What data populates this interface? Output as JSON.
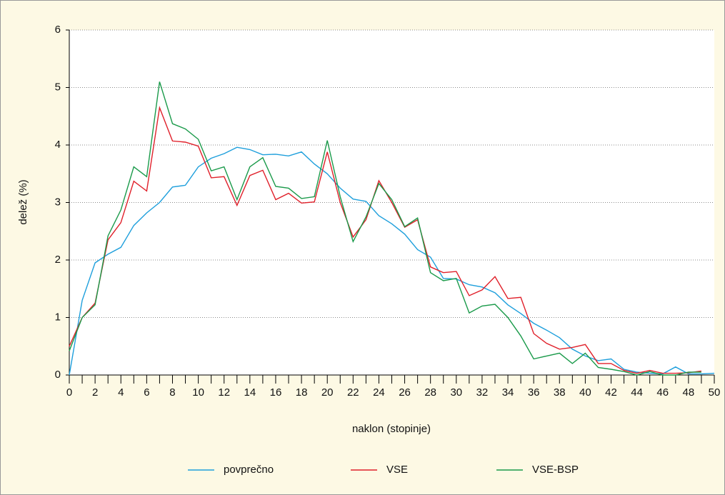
{
  "chart_data": {
    "type": "line",
    "x": [
      0,
      1,
      2,
      3,
      4,
      5,
      6,
      7,
      8,
      9,
      10,
      11,
      12,
      13,
      14,
      15,
      16,
      17,
      18,
      19,
      20,
      21,
      22,
      23,
      24,
      25,
      26,
      27,
      28,
      29,
      30,
      31,
      32,
      33,
      34,
      35,
      36,
      37,
      38,
      39,
      40,
      41,
      42,
      43,
      44,
      45,
      46,
      47,
      48,
      49,
      50
    ],
    "series": [
      {
        "name": "povprečno",
        "color": "#1e9fdc",
        "values": [
          0,
          1.3,
          1.95,
          2.1,
          2.22,
          2.6,
          2.82,
          3.0,
          3.27,
          3.3,
          3.62,
          3.77,
          3.85,
          3.96,
          3.92,
          3.83,
          3.84,
          3.81,
          3.88,
          3.67,
          3.5,
          3.25,
          3.06,
          3.02,
          2.77,
          2.63,
          2.45,
          2.18,
          2.05,
          1.68,
          1.67,
          1.57,
          1.53,
          1.43,
          1.22,
          1.07,
          0.9,
          0.78,
          0.65,
          0.45,
          0.33,
          0.25,
          0.28,
          0.1,
          0.05,
          0.03,
          0.02,
          0.14,
          0.02,
          0.02,
          0.03
        ]
      },
      {
        "name": "VSE",
        "color": "#e0202a",
        "values": [
          0.5,
          1.0,
          1.25,
          2.35,
          2.65,
          3.37,
          3.2,
          4.65,
          4.07,
          4.05,
          3.98,
          3.43,
          3.45,
          2.95,
          3.47,
          3.56,
          3.05,
          3.16,
          2.99,
          3.01,
          3.88,
          3.0,
          2.4,
          2.7,
          3.38,
          3.0,
          2.57,
          2.7,
          1.88,
          1.78,
          1.8,
          1.38,
          1.48,
          1.71,
          1.33,
          1.35,
          0.72,
          0.55,
          0.45,
          0.48,
          0.53,
          0.2,
          0.2,
          0.08,
          0.03,
          0.08,
          0.03,
          0.03,
          0.04,
          0.07,
          null
        ]
      },
      {
        "name": "VSE-BSP",
        "color": "#1a9a4a",
        "values": [
          0.42,
          1.0,
          1.22,
          2.42,
          2.87,
          3.62,
          3.45,
          5.1,
          4.37,
          4.28,
          4.1,
          3.55,
          3.62,
          3.05,
          3.62,
          3.78,
          3.28,
          3.25,
          3.07,
          3.1,
          4.08,
          3.1,
          2.32,
          2.75,
          3.33,
          3.05,
          2.58,
          2.73,
          1.78,
          1.64,
          1.68,
          1.08,
          1.2,
          1.23,
          1.0,
          0.68,
          0.28,
          0.33,
          0.38,
          0.2,
          0.38,
          0.13,
          0.1,
          0.06,
          0.0,
          0.06,
          0.0,
          0.0,
          0.05,
          0.05,
          null
        ]
      }
    ],
    "xlabel": "naklon (stopinje)",
    "ylabel": "delež (%)",
    "xlim": [
      0,
      50
    ],
    "xticks": [
      0,
      2,
      4,
      6,
      8,
      10,
      12,
      14,
      16,
      18,
      20,
      22,
      24,
      26,
      28,
      30,
      32,
      34,
      36,
      38,
      40,
      42,
      44,
      46,
      48,
      50
    ],
    "ylim": [
      0,
      6
    ],
    "yticks": [
      0,
      1,
      2,
      3,
      4,
      5,
      6
    ],
    "grid": true,
    "legend": "bottom"
  }
}
